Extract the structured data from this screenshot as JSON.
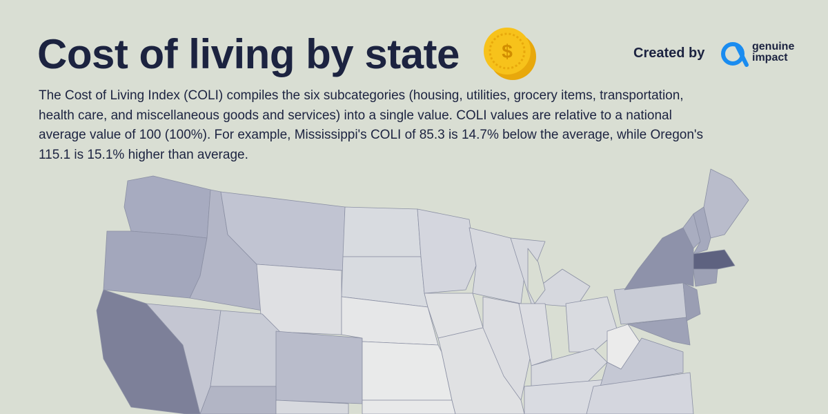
{
  "header": {
    "title": "Cost of living by state",
    "coin_symbol": "$",
    "credit": "Created by",
    "brand": [
      "genuine",
      "impact"
    ]
  },
  "description": [
    "The Cost of Living Index (COLI) compiles the six subcategories (housing, utilities, grocery items, transportation,",
    "health care, and miscellaneous goods and services) into a single value. COLI values are relative to a national",
    "average value of 100 (100%). For example, Mississippi's COLI of 85.3 is 14.7% below the average, while Oregon's",
    "115.1 is 15.1% higher than average."
  ]
}
